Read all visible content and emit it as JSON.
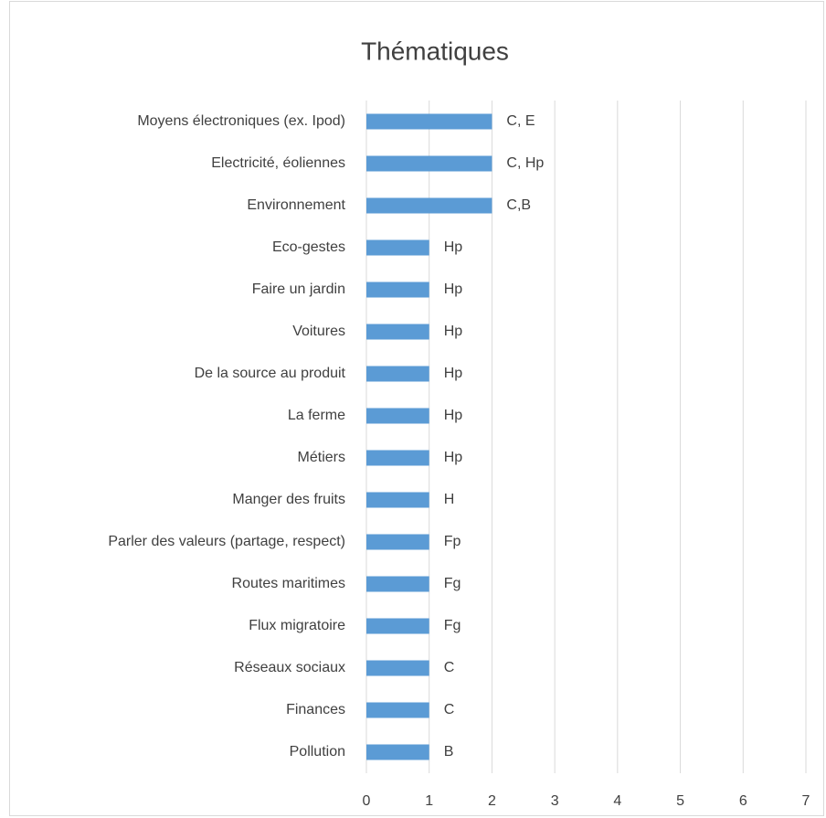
{
  "chart_data": {
    "type": "barh",
    "title": "Thématiques",
    "categories": [
      "Moyens électroniques (ex. Ipod)",
      "Electricité, éoliennes",
      "Environnement",
      "Eco-gestes",
      "Faire un jardin",
      "Voitures",
      "De la source au produit",
      "La ferme",
      "Métiers",
      "Manger des fruits",
      "Parler des valeurs (partage, respect)",
      "Routes maritimes",
      "Flux migratoire",
      "Réseaux sociaux",
      "Finances",
      "Pollution"
    ],
    "values": [
      2,
      2,
      2,
      1,
      1,
      1,
      1,
      1,
      1,
      1,
      1,
      1,
      1,
      1,
      1,
      1
    ],
    "annotations": [
      "C, E",
      "C, Hp",
      "C,B",
      "Hp",
      "Hp",
      "Hp",
      "Hp",
      "Hp",
      "Hp",
      "H",
      "Fp",
      "Fg",
      "Fg",
      "C",
      "C",
      "B"
    ],
    "color": "#5b9bd5",
    "xlim": [
      0,
      7
    ],
    "xticks": [
      0,
      1,
      2,
      3,
      4,
      5,
      6,
      7
    ],
    "grid": true
  }
}
